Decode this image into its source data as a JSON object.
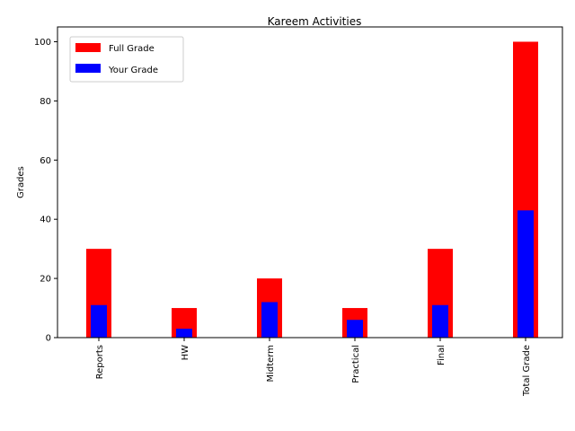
{
  "chart_data": {
    "type": "bar",
    "title": "Kareem  Activities",
    "xlabel": "",
    "ylabel": "Grades",
    "ylim": [
      0,
      105
    ],
    "yticks": [
      0,
      20,
      40,
      60,
      80,
      100
    ],
    "grid": false,
    "legend_position": "top-left",
    "categories": [
      "Reports",
      "HW",
      "Midterm",
      "Practical",
      "Final",
      "Total Grade"
    ],
    "series": [
      {
        "name": "Full Grade",
        "color": "#ff0000",
        "values": [
          30,
          10,
          20,
          10,
          30,
          100
        ]
      },
      {
        "name": "Your Grade",
        "color": "#0000ff",
        "values": [
          11,
          3,
          12,
          6,
          11,
          43
        ]
      }
    ]
  }
}
